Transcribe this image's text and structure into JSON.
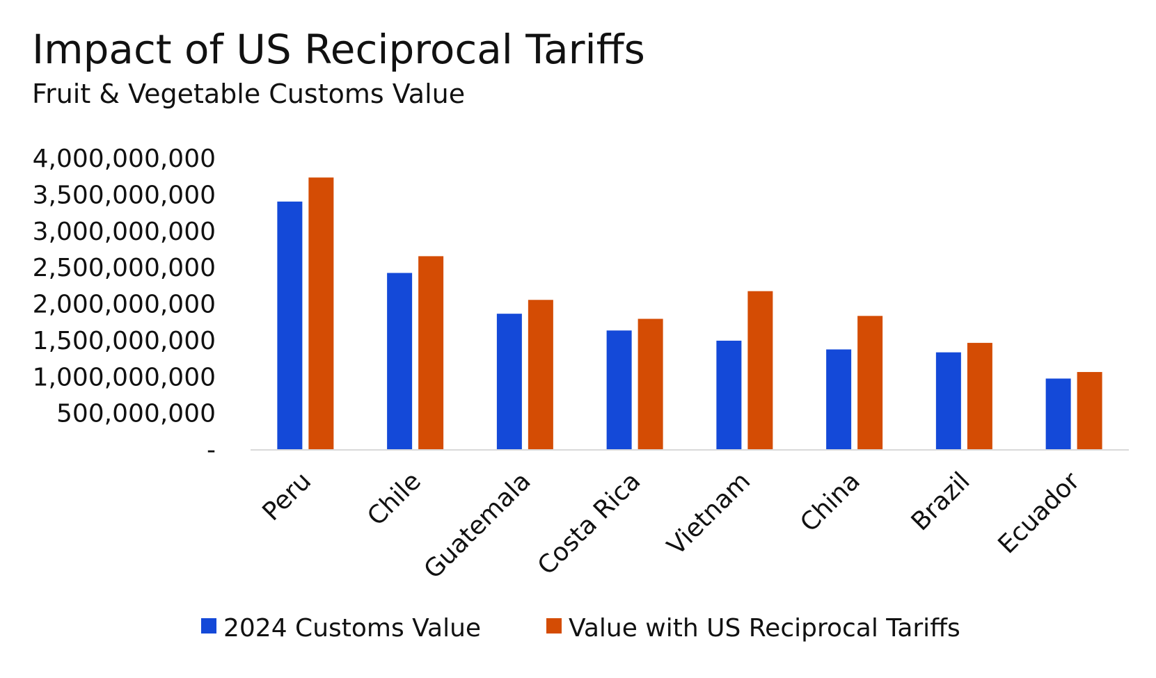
{
  "chart_data": {
    "type": "bar",
    "title": "Impact of US Reciprocal Tariffs",
    "subtitle": "Fruit & Vegetable Customs Value",
    "xlabel": "",
    "ylabel": "",
    "categories": [
      "Peru",
      "Chile",
      "Guatemala",
      "Costa Rica",
      "Vietnam",
      "China",
      "Brazil",
      "Ecuador"
    ],
    "series": [
      {
        "name": "2024 Customs Value",
        "color": "#1449d8",
        "values": [
          3400000000,
          2420000000,
          1860000000,
          1630000000,
          1490000000,
          1370000000,
          1330000000,
          970000000
        ]
      },
      {
        "name": "Value with US Reciprocal Tariffs",
        "color": "#d44c04",
        "values": [
          3730000000,
          2650000000,
          2050000000,
          1790000000,
          2170000000,
          1830000000,
          1460000000,
          1060000000
        ]
      }
    ],
    "ylim": [
      0,
      4000000000
    ],
    "yticks": [
      0,
      500000000,
      1000000000,
      1500000000,
      2000000000,
      2500000000,
      3000000000,
      3500000000,
      4000000000
    ],
    "ytick_labels": [
      "-",
      "500,000,000",
      "1,000,000,000",
      "1,500,000,000",
      "2,000,000,000",
      "2,500,000,000",
      "3,000,000,000",
      "3,500,000,000",
      "4,000,000,000"
    ],
    "grid": false,
    "legend": "bottom",
    "axis_color": "#d9d9d9"
  }
}
